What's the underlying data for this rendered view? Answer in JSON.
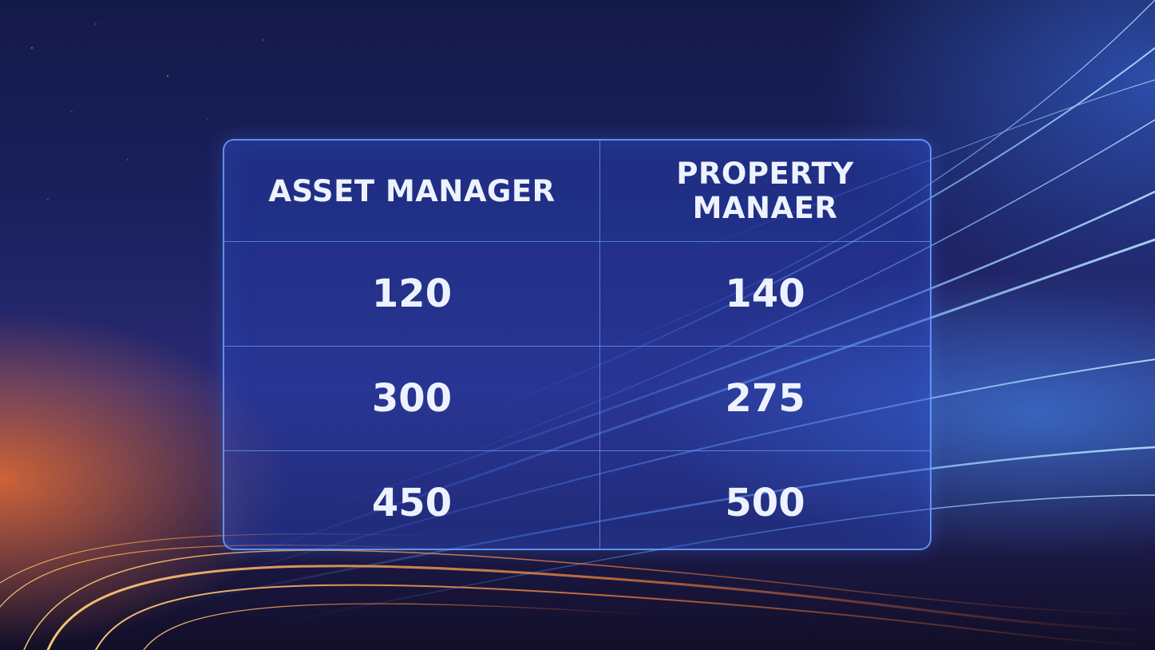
{
  "table": {
    "headers": [
      "ASSET MANAGER",
      "PROPERTY MANAER"
    ],
    "rows": [
      [
        "120",
        "140"
      ],
      [
        "300",
        "275"
      ],
      [
        "450",
        "500"
      ]
    ]
  },
  "colors": {
    "background_top": "#141a48",
    "background_mid": "#2a2a74",
    "glow_orange": "#eb6e32",
    "streak_blue": "#4696ff",
    "table_border": "#6ea0ff",
    "text": "#eef2ff"
  }
}
